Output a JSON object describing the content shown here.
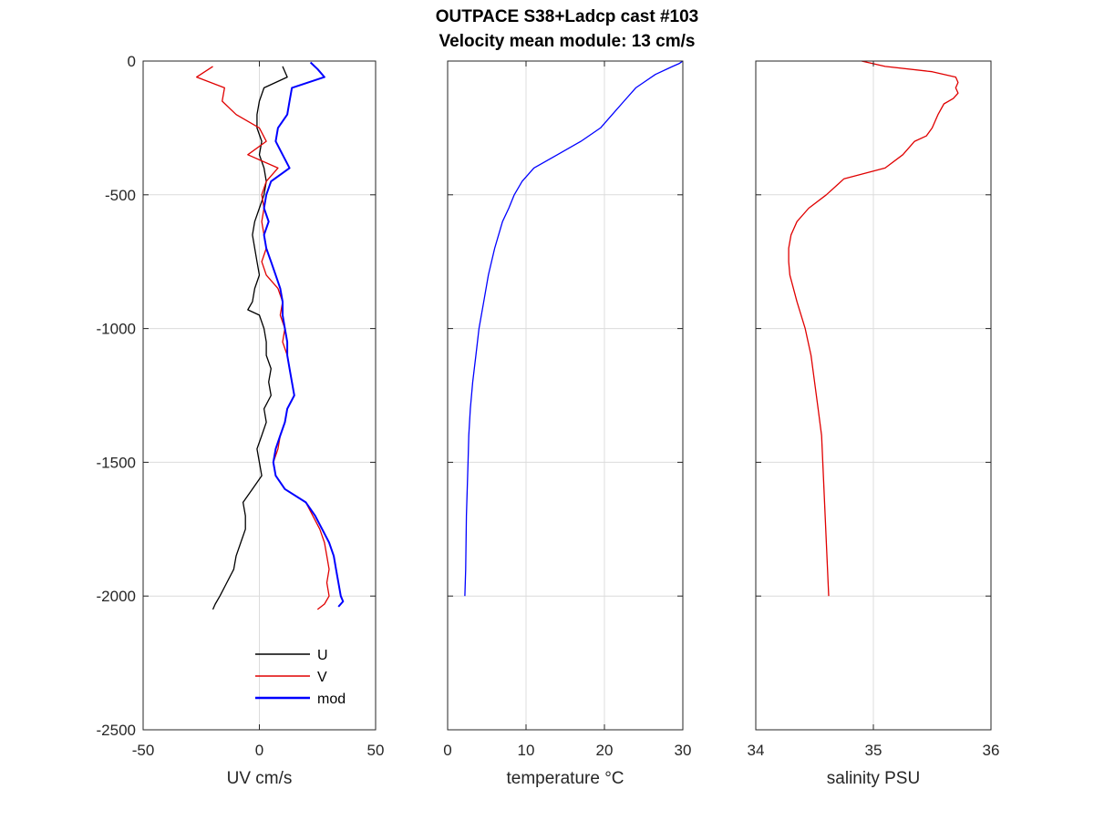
{
  "title": {
    "line1": "OUTPACE S38+Ladcp cast #103",
    "line2": "Velocity mean module:  13 cm/s"
  },
  "chart_data": [
    {
      "type": "line",
      "name": "uv",
      "xlabel": "UV cm/s",
      "ylabel": "",
      "xlim": [
        -50,
        50
      ],
      "ylim": [
        -2500,
        0
      ],
      "xticks": [
        -50,
        0,
        50
      ],
      "xtick_labels": [
        "-50",
        "0",
        "50"
      ],
      "yticks": [
        -2500,
        -2000,
        -1500,
        -1000,
        -500,
        0
      ],
      "ytick_labels": [
        "-2500",
        "-2000",
        "-1500",
        "-1000",
        "-500",
        "0"
      ],
      "grid": true,
      "legend": {
        "position": "bottom-center",
        "entries": [
          "U",
          "V",
          "mod"
        ]
      },
      "series": [
        {
          "name": "U",
          "color": "#000000",
          "depth": [
            -20,
            -60,
            -100,
            -150,
            -200,
            -250,
            -300,
            -350,
            -400,
            -450,
            -500,
            -550,
            -600,
            -650,
            -700,
            -750,
            -800,
            -850,
            -900,
            -930,
            -950,
            -1000,
            -1050,
            -1100,
            -1150,
            -1200,
            -1250,
            -1300,
            -1350,
            -1400,
            -1450,
            -1500,
            -1550,
            -1600,
            -1650,
            -1700,
            -1750,
            -1800,
            -1850,
            -1900,
            -1950,
            -2000,
            -2030,
            -2050
          ],
          "values": [
            10,
            12,
            2,
            0,
            -1,
            -1,
            1,
            0,
            2,
            3,
            2,
            0,
            -2,
            -3,
            -2,
            -1,
            0,
            -2,
            -3,
            -5,
            0,
            2,
            3,
            3,
            5,
            4,
            5,
            2,
            3,
            1,
            -1,
            0,
            1,
            -3,
            -7,
            -6,
            -6,
            -8,
            -10,
            -11,
            -14,
            -17,
            -19,
            -20
          ]
        },
        {
          "name": "V",
          "color": "#e00000",
          "depth": [
            -20,
            -60,
            -100,
            -150,
            -200,
            -250,
            -300,
            -350,
            -400,
            -450,
            -500,
            -550,
            -600,
            -650,
            -700,
            -750,
            -800,
            -850,
            -900,
            -950,
            -1000,
            -1050,
            -1100,
            -1150,
            -1200,
            -1250,
            -1300,
            -1350,
            -1400,
            -1450,
            -1500,
            -1550,
            -1600,
            -1650,
            -1700,
            -1750,
            -1800,
            -1850,
            -1900,
            -1950,
            -2000,
            -2030,
            -2050
          ],
          "values": [
            -20,
            -27,
            -15,
            -16,
            -10,
            0,
            3,
            -5,
            8,
            3,
            1,
            2,
            1,
            2,
            3,
            1,
            3,
            8,
            10,
            9,
            11,
            10,
            12,
            13,
            14,
            15,
            12,
            11,
            9,
            8,
            6,
            7,
            11,
            20,
            23,
            26,
            28,
            29,
            30,
            29,
            30,
            28,
            25
          ]
        },
        {
          "name": "mod",
          "color": "#0000ff",
          "depth": [
            -5,
            -30,
            -60,
            -100,
            -150,
            -200,
            -250,
            -300,
            -350,
            -400,
            -450,
            -500,
            -550,
            -600,
            -650,
            -700,
            -750,
            -800,
            -850,
            -900,
            -950,
            -1000,
            -1050,
            -1100,
            -1150,
            -1200,
            -1250,
            -1300,
            -1350,
            -1400,
            -1450,
            -1500,
            -1550,
            -1600,
            -1650,
            -1700,
            -1750,
            -1800,
            -1850,
            -1900,
            -1950,
            -2000,
            -2020,
            -2040
          ],
          "values": [
            22,
            25,
            28,
            14,
            13,
            12,
            8,
            7,
            10,
            13,
            5,
            3,
            2,
            4,
            2,
            3,
            5,
            7,
            9,
            10,
            10,
            11,
            12,
            12,
            13,
            14,
            15,
            12,
            11,
            9,
            7,
            6,
            7,
            11,
            20,
            24,
            27,
            30,
            32,
            33,
            34,
            35,
            36,
            34
          ]
        }
      ]
    },
    {
      "type": "line",
      "name": "temperature",
      "xlabel": "temperature °C",
      "ylabel": "",
      "xlim": [
        0,
        30
      ],
      "ylim": [
        -2500,
        0
      ],
      "xticks": [
        0,
        10,
        20,
        30
      ],
      "xtick_labels": [
        "0",
        "10",
        "20",
        "30"
      ],
      "yticks": [
        -2500,
        -2000,
        -1500,
        -1000,
        -500,
        0
      ],
      "grid": true,
      "series": [
        {
          "name": "",
          "color": "#0000ff",
          "depth": [
            0,
            -10,
            -20,
            -50,
            -80,
            -100,
            -150,
            -200,
            -250,
            -300,
            -350,
            -400,
            -450,
            -500,
            -550,
            -600,
            -700,
            -800,
            -900,
            -1000,
            -1100,
            -1200,
            -1300,
            -1400,
            -1500,
            -1600,
            -1700,
            -1800,
            -1900,
            -2000
          ],
          "values": [
            30,
            29.5,
            28.7,
            26.5,
            25,
            24,
            22.5,
            21,
            19.5,
            17,
            14,
            11,
            9.5,
            8.5,
            7.8,
            7,
            6,
            5.2,
            4.6,
            4.0,
            3.6,
            3.2,
            2.9,
            2.7,
            2.6,
            2.5,
            2.4,
            2.35,
            2.3,
            2.2
          ]
        }
      ]
    },
    {
      "type": "line",
      "name": "salinity",
      "xlabel": "salinity PSU",
      "ylabel": "",
      "xlim": [
        34,
        36
      ],
      "ylim": [
        -2500,
        0
      ],
      "xticks": [
        34,
        35,
        36
      ],
      "xtick_labels": [
        "34",
        "35",
        "36"
      ],
      "yticks": [
        -2500,
        -2000,
        -1500,
        -1000,
        -500,
        0
      ],
      "grid": true,
      "series": [
        {
          "name": "",
          "color": "#e00000",
          "depth": [
            0,
            -20,
            -40,
            -60,
            -80,
            -100,
            -120,
            -140,
            -160,
            -200,
            -250,
            -280,
            -300,
            -350,
            -400,
            -440,
            -460,
            -500,
            -550,
            -600,
            -650,
            -700,
            -750,
            -800,
            -900,
            -1000,
            -1100,
            -1200,
            -1300,
            -1400,
            -1500,
            -1600,
            -1700,
            -1800,
            -1900,
            -2000
          ],
          "values": [
            34.9,
            35.1,
            35.5,
            35.7,
            35.72,
            35.7,
            35.72,
            35.68,
            35.6,
            35.55,
            35.5,
            35.45,
            35.35,
            35.25,
            35.1,
            34.75,
            34.7,
            34.6,
            34.45,
            34.35,
            34.3,
            34.28,
            34.28,
            34.29,
            34.35,
            34.42,
            34.47,
            34.5,
            34.53,
            34.56,
            34.57,
            34.58,
            34.59,
            34.6,
            34.61,
            34.62
          ]
        }
      ]
    }
  ]
}
